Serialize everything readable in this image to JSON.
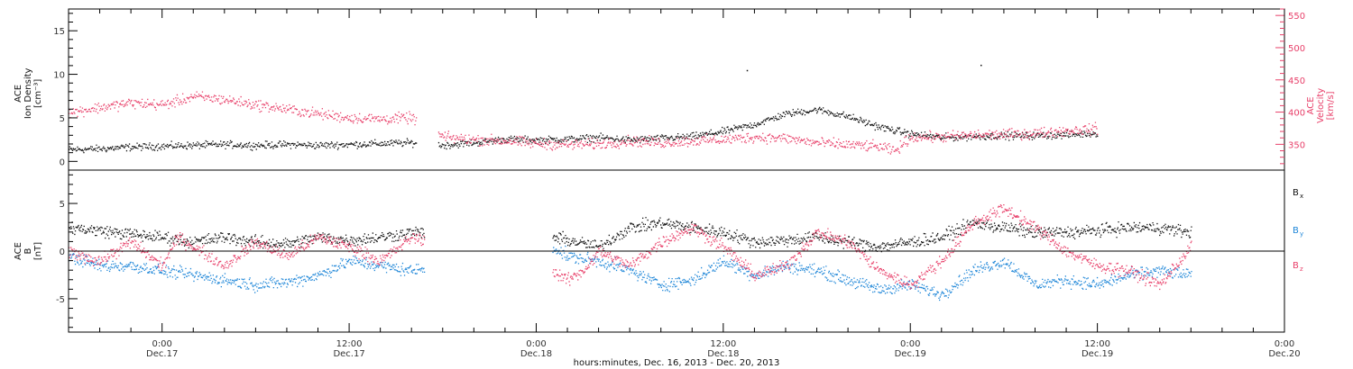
{
  "colors": {
    "black": "#111111",
    "pink": "#e8406a",
    "blue": "#1e86d8",
    "axis": "#000000"
  },
  "x_axis": {
    "title": "hours:minutes, Dec. 16, 2013 - Dec. 20, 2013",
    "range_hours": [
      -6,
      72
    ],
    "ticks": [
      {
        "hours": 0,
        "time": "0:00",
        "date": "Dec.17"
      },
      {
        "hours": 12,
        "time": "12:00",
        "date": "Dec.17"
      },
      {
        "hours": 24,
        "time": "0:00",
        "date": "Dec.18"
      },
      {
        "hours": 36,
        "time": "12:00",
        "date": "Dec.18"
      },
      {
        "hours": 48,
        "time": "0:00",
        "date": "Dec.19"
      },
      {
        "hours": 60,
        "time": "12:00",
        "date": "Dec.19"
      },
      {
        "hours": 72,
        "time": "0:00",
        "date": "Dec.20"
      }
    ]
  },
  "chart_data": [
    {
      "type": "scatter",
      "panel": "plasma",
      "left_axis": {
        "label_lines": [
          "ACE",
          "Ion Density",
          "[cm⁻³]"
        ],
        "ylim": [
          -1,
          17.5
        ],
        "ticks": [
          0,
          5,
          10,
          15
        ]
      },
      "right_axis": {
        "label_lines": [
          "ACE",
          "Velocity",
          "[km/s]"
        ],
        "ylim": [
          310,
          560
        ],
        "ticks": [
          350,
          400,
          450,
          500,
          550
        ]
      },
      "series": [
        {
          "axis": "left",
          "color": "black",
          "points": [
            [
              -6,
              1.4
            ],
            [
              -4,
              1.5
            ],
            [
              -2,
              1.7
            ],
            [
              0,
              1.8
            ],
            [
              2,
              1.9
            ],
            [
              4,
              2.0
            ],
            [
              6,
              1.9
            ],
            [
              8,
              2.0
            ],
            [
              10,
              1.9
            ],
            [
              12,
              2.0
            ],
            [
              14,
              2.1
            ],
            [
              16,
              2.2
            ],
            [
              18,
              1.9
            ],
            [
              20,
              2.2
            ],
            [
              22,
              2.6
            ],
            [
              24,
              2.5
            ],
            [
              26,
              2.6
            ],
            [
              28,
              2.8
            ],
            [
              30,
              2.5
            ],
            [
              32,
              2.7
            ],
            [
              34,
              2.9
            ],
            [
              36,
              3.5
            ],
            [
              38,
              4.3
            ],
            [
              40,
              5.5
            ],
            [
              42,
              6.0
            ],
            [
              44,
              5.2
            ],
            [
              46,
              4.0
            ],
            [
              48,
              3.2
            ],
            [
              50,
              2.8
            ],
            [
              52,
              2.9
            ],
            [
              54,
              3.0
            ],
            [
              56,
              3.0
            ],
            [
              58,
              3.1
            ],
            [
              60,
              3.3
            ]
          ],
          "gaps": [
            [
              16.3,
              17.7
            ],
            [
              60.6,
              72
            ]
          ]
        },
        {
          "axis": "right",
          "color": "pink",
          "points": [
            [
              -6,
              400
            ],
            [
              -4,
              408
            ],
            [
              -2,
              415
            ],
            [
              0,
              412
            ],
            [
              1,
              418
            ],
            [
              2,
              425
            ],
            [
              4,
              420
            ],
            [
              6,
              412
            ],
            [
              8,
              405
            ],
            [
              10,
              398
            ],
            [
              12,
              392
            ],
            [
              14,
              390
            ],
            [
              16,
              392
            ],
            [
              18,
              362
            ],
            [
              20,
              358
            ],
            [
              22,
              356
            ],
            [
              24,
              352
            ],
            [
              26,
              350
            ],
            [
              28,
              351
            ],
            [
              30,
              356
            ],
            [
              32,
              353
            ],
            [
              34,
              356
            ],
            [
              36,
              358
            ],
            [
              38,
              362
            ],
            [
              40,
              360
            ],
            [
              42,
              353
            ],
            [
              44,
              350
            ],
            [
              46,
              347
            ],
            [
              47,
              340
            ],
            [
              48,
              362
            ],
            [
              50,
              362
            ],
            [
              52,
              365
            ],
            [
              54,
              366
            ],
            [
              56,
              368
            ],
            [
              58,
              372
            ],
            [
              60,
              375
            ]
          ],
          "gaps": [
            [
              16.3,
              17.7
            ],
            [
              60.6,
              72
            ]
          ]
        }
      ],
      "outliers": [
        {
          "x": 37.5,
          "y": 10.5
        },
        {
          "x": 52.5,
          "y": 11.1
        }
      ]
    },
    {
      "type": "scatter",
      "panel": "magnetic_field",
      "left_axis": {
        "label_lines": [
          "ACE",
          "B",
          "[nT]"
        ],
        "ylim": [
          -8.5,
          8.5
        ],
        "ticks": [
          -5,
          0,
          5
        ],
        "zero_line": true
      },
      "legend": {
        "placement": "right",
        "entries": [
          {
            "text": "B",
            "sub": "x",
            "color": "black"
          },
          {
            "text": "B",
            "sub": "y",
            "color": "blue"
          },
          {
            "text": "B",
            "sub": "z",
            "color": "pink"
          }
        ]
      },
      "series": [
        {
          "name": "Bx",
          "color": "black",
          "points": [
            [
              -6,
              2.5
            ],
            [
              -4,
              2.2
            ],
            [
              -2,
              1.8
            ],
            [
              0,
              1.5
            ],
            [
              2,
              1.0
            ],
            [
              4,
              1.5
            ],
            [
              6,
              1.0
            ],
            [
              8,
              0.8
            ],
            [
              10,
              1.5
            ],
            [
              12,
              1.2
            ],
            [
              14,
              1.5
            ],
            [
              16,
              2.0
            ],
            [
              25,
              1.5
            ],
            [
              26,
              1.2
            ],
            [
              28,
              0.5
            ],
            [
              30,
              2.5
            ],
            [
              32,
              3.0
            ],
            [
              34,
              2.5
            ],
            [
              36,
              2.0
            ],
            [
              38,
              1.0
            ],
            [
              40,
              1.2
            ],
            [
              42,
              1.5
            ],
            [
              44,
              1.0
            ],
            [
              46,
              0.5
            ],
            [
              48,
              1.0
            ],
            [
              50,
              1.5
            ],
            [
              52,
              3.0
            ],
            [
              54,
              2.5
            ],
            [
              56,
              2.0
            ],
            [
              58,
              2.0
            ],
            [
              60,
              2.2
            ],
            [
              62,
              2.5
            ],
            [
              64,
              2.5
            ],
            [
              66,
              2.0
            ]
          ],
          "gaps": [
            [
              16.8,
              25
            ],
            [
              66.4,
              72
            ]
          ]
        },
        {
          "name": "By",
          "color": "blue",
          "points": [
            [
              -6,
              -0.5
            ],
            [
              -4,
              -1.5
            ],
            [
              -2,
              -1.5
            ],
            [
              0,
              -2.0
            ],
            [
              2,
              -2.5
            ],
            [
              4,
              -3.0
            ],
            [
              6,
              -3.5
            ],
            [
              8,
              -3.2
            ],
            [
              10,
              -2.5
            ],
            [
              12,
              -1.0
            ],
            [
              14,
              -1.5
            ],
            [
              16,
              -2.0
            ],
            [
              25,
              0.5
            ],
            [
              26,
              -0.5
            ],
            [
              28,
              -1.0
            ],
            [
              30,
              -2.0
            ],
            [
              32,
              -3.5
            ],
            [
              34,
              -3.0
            ],
            [
              36,
              -1.0
            ],
            [
              38,
              -2.5
            ],
            [
              40,
              -1.5
            ],
            [
              42,
              -2.0
            ],
            [
              44,
              -3.0
            ],
            [
              46,
              -4.0
            ],
            [
              48,
              -3.5
            ],
            [
              50,
              -4.5
            ],
            [
              52,
              -2.0
            ],
            [
              54,
              -1.0
            ],
            [
              56,
              -3.5
            ],
            [
              58,
              -3.0
            ],
            [
              60,
              -3.5
            ],
            [
              62,
              -2.5
            ],
            [
              64,
              -2.0
            ],
            [
              66,
              -2.5
            ]
          ],
          "gaps": [
            [
              16.8,
              25
            ],
            [
              66.4,
              72
            ]
          ]
        },
        {
          "name": "Bz",
          "color": "pink",
          "points": [
            [
              -6,
              0.0
            ],
            [
              -4,
              -1.0
            ],
            [
              -2,
              1.0
            ],
            [
              0,
              -1.5
            ],
            [
              1,
              1.5
            ],
            [
              2,
              0.5
            ],
            [
              4,
              -1.5
            ],
            [
              6,
              1.0
            ],
            [
              8,
              -0.5
            ],
            [
              10,
              1.5
            ],
            [
              12,
              0.5
            ],
            [
              14,
              -1.0
            ],
            [
              16,
              1.5
            ],
            [
              25,
              -2.0
            ],
            [
              26,
              -3.0
            ],
            [
              27,
              -2.0
            ],
            [
              28,
              0.0
            ],
            [
              30,
              -1.5
            ],
            [
              32,
              1.0
            ],
            [
              34,
              2.5
            ],
            [
              36,
              0.5
            ],
            [
              38,
              -2.5
            ],
            [
              40,
              -1.5
            ],
            [
              42,
              2.0
            ],
            [
              44,
              1.0
            ],
            [
              46,
              -2.0
            ],
            [
              48,
              -3.5
            ],
            [
              50,
              -1.0
            ],
            [
              52,
              3.0
            ],
            [
              54,
              4.5
            ],
            [
              56,
              2.5
            ],
            [
              58,
              0.0
            ],
            [
              60,
              -1.5
            ],
            [
              62,
              -2.0
            ],
            [
              64,
              -3.5
            ],
            [
              66,
              0.5
            ]
          ],
          "gaps": [
            [
              16.8,
              25
            ],
            [
              66.4,
              72
            ]
          ]
        }
      ]
    }
  ]
}
